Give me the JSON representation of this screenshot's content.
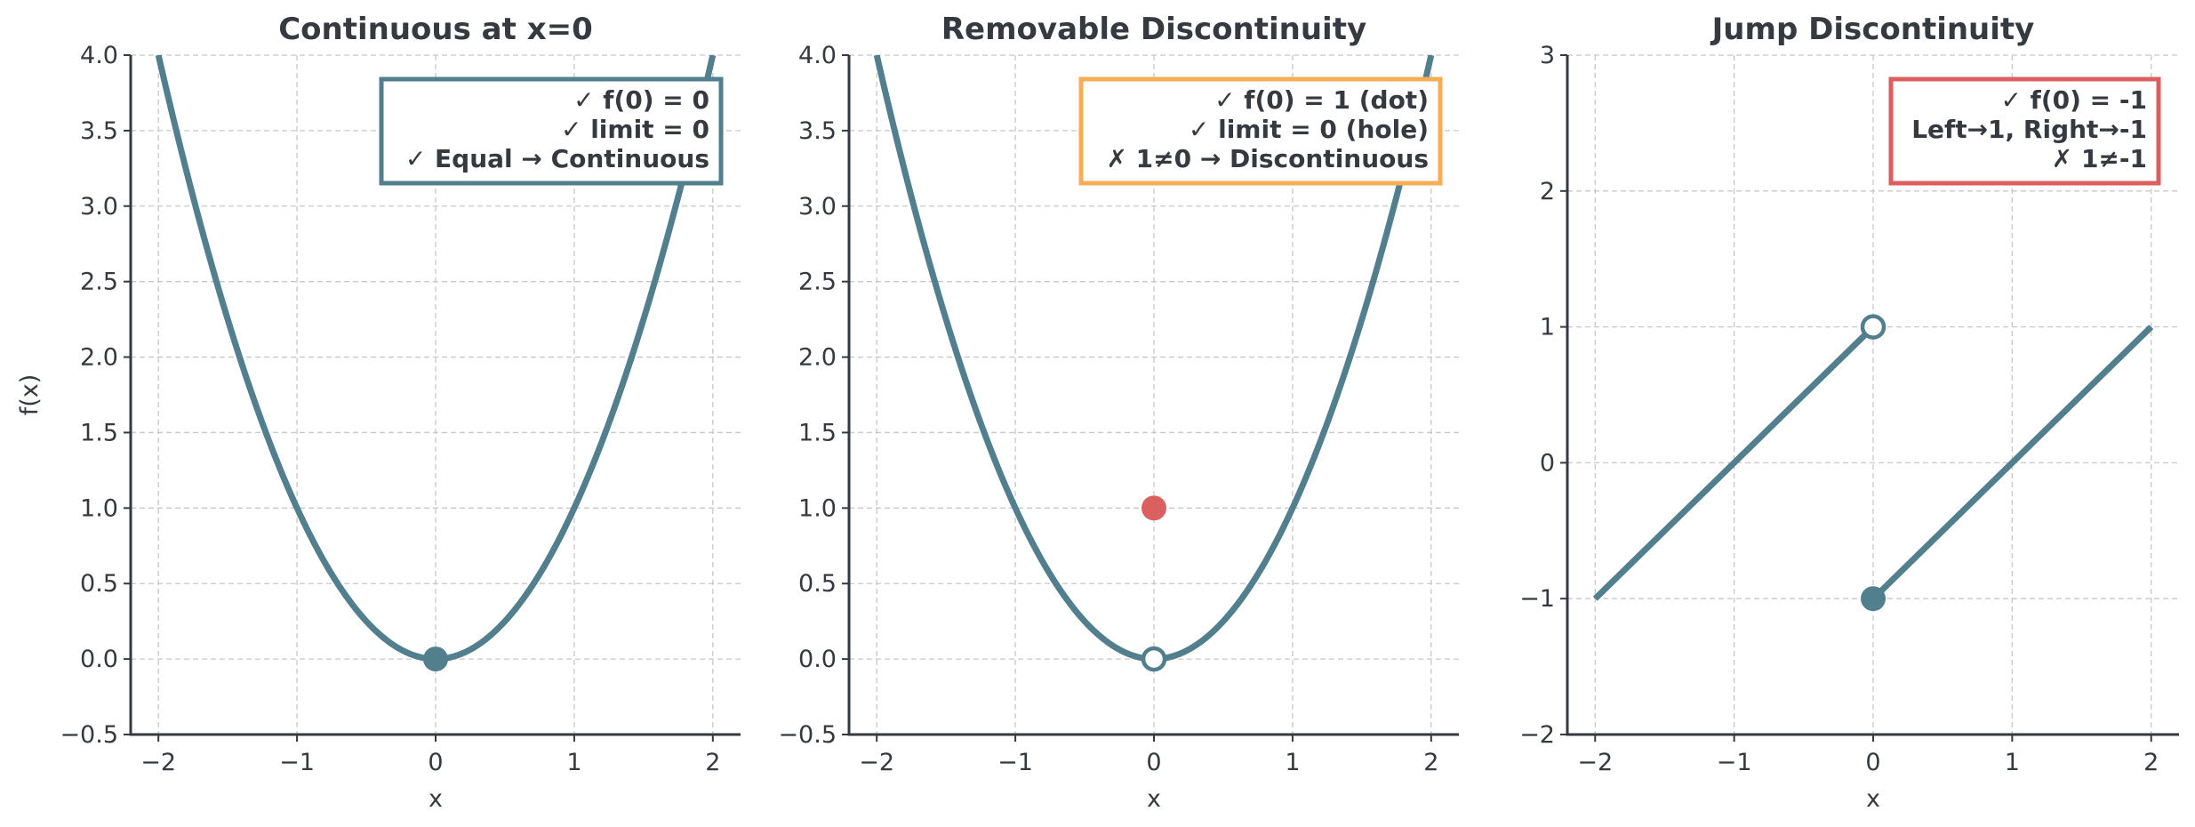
{
  "chart_data": [
    {
      "type": "line",
      "title": "Continuous at x=0",
      "xlabel": "x",
      "ylabel": "f(x)",
      "xlim": [
        -2.2,
        2.2
      ],
      "ylim": [
        -0.5,
        4.0
      ],
      "xticks": [
        -2,
        -1,
        0,
        1,
        2
      ],
      "yticks": [
        -0.5,
        0.0,
        0.5,
        1.0,
        1.5,
        2.0,
        2.5,
        3.0,
        3.5,
        4.0
      ],
      "grid": true,
      "series": [
        {
          "function": "x^2",
          "x": [
            -2,
            2
          ],
          "color": "#517f8d"
        }
      ],
      "points": [
        {
          "x": 0,
          "y": 0,
          "style": "filled",
          "color": "#517f8d"
        }
      ],
      "annotation": {
        "lines": [
          "✓ f(0) = 0",
          "✓ limit = 0",
          "✓ Equal → Continuous"
        ],
        "border_color": "#517f8d",
        "placement": "top-right"
      }
    },
    {
      "type": "line",
      "title": "Removable Discontinuity",
      "xlabel": "x",
      "ylabel": "",
      "xlim": [
        -2.2,
        2.2
      ],
      "ylim": [
        -0.5,
        4.0
      ],
      "xticks": [
        -2,
        -1,
        0,
        1,
        2
      ],
      "yticks": [
        -0.5,
        0.0,
        0.5,
        1.0,
        1.5,
        2.0,
        2.5,
        3.0,
        3.5,
        4.0
      ],
      "grid": true,
      "series": [
        {
          "function": "x^2",
          "x": [
            -2,
            2
          ],
          "color": "#517f8d"
        }
      ],
      "points": [
        {
          "x": 0,
          "y": 1,
          "style": "filled",
          "color": "#d9605f"
        },
        {
          "x": 0,
          "y": 0,
          "style": "open",
          "color": "#517f8d"
        }
      ],
      "annotation": {
        "lines": [
          "✓ f(0) = 1 (dot)",
          "✓ limit = 0 (hole)",
          "✗ 1≠0 → Discontinuous"
        ],
        "border_color": "#f5ae56",
        "placement": "top-right"
      }
    },
    {
      "type": "line",
      "title": "Jump Discontinuity",
      "xlabel": "x",
      "ylabel": "",
      "xlim": [
        -2.2,
        2.2
      ],
      "ylim": [
        -2,
        3
      ],
      "xticks": [
        -2,
        -1,
        0,
        1,
        2
      ],
      "yticks": [
        -2,
        -1,
        0,
        1,
        2,
        3
      ],
      "grid": true,
      "series": [
        {
          "x": [
            -2,
            0
          ],
          "y": [
            -1,
            1
          ],
          "color": "#517f8d"
        },
        {
          "x": [
            0,
            2
          ],
          "y": [
            -1,
            1
          ],
          "color": "#517f8d"
        }
      ],
      "points": [
        {
          "x": 0,
          "y": 1,
          "style": "open",
          "color": "#517f8d"
        },
        {
          "x": 0,
          "y": -1,
          "style": "filled",
          "color": "#517f8d"
        }
      ],
      "annotation": {
        "lines": [
          "✓ f(0) = -1",
          "Left→1, Right→-1",
          "✗ 1≠-1"
        ],
        "border_color": "#d9605f",
        "placement": "top-right"
      }
    }
  ]
}
